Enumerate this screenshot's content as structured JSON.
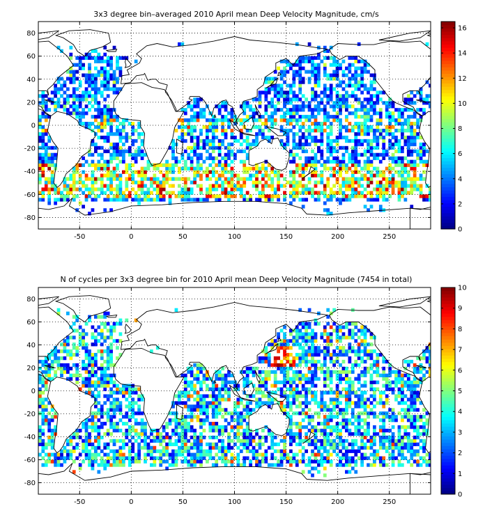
{
  "chart_data": [
    {
      "type": "heatmap",
      "title": "3x3 degree bin–averaged 2010 April mean Deep Velocity Magnitude, cm/s",
      "xlabel": "",
      "ylabel": "",
      "xlim": [
        -90,
        290
      ],
      "ylim": [
        -90,
        90
      ],
      "x_ticks": [
        -50,
        0,
        50,
        100,
        150,
        200,
        250
      ],
      "y_ticks": [
        80,
        60,
        40,
        20,
        0,
        -20,
        -40,
        -60,
        -80
      ],
      "bin_size_deg": 3,
      "grid": true,
      "colormap": "jet",
      "colorbar": {
        "min": 0,
        "max": 16.5,
        "ticks": [
          0,
          2,
          4,
          6,
          8,
          10,
          12,
          14,
          16
        ]
      }
    },
    {
      "type": "heatmap",
      "title": "N of cycles per 3x3 degree bin for 2010 April mean Deep Velocity Magnitude (7454 in total)",
      "xlabel": "",
      "ylabel": "",
      "xlim": [
        -90,
        290
      ],
      "ylim": [
        -90,
        90
      ],
      "x_ticks": [
        -50,
        0,
        50,
        100,
        150,
        200,
        250
      ],
      "y_ticks": [
        80,
        60,
        40,
        20,
        0,
        -20,
        -40,
        -60,
        -80
      ],
      "bin_size_deg": 3,
      "grid": true,
      "colormap": "jet",
      "colorbar": {
        "min": 0,
        "max": 10,
        "ticks": [
          0,
          1,
          2,
          3,
          4,
          5,
          6,
          7,
          8,
          9,
          10
        ]
      }
    }
  ]
}
